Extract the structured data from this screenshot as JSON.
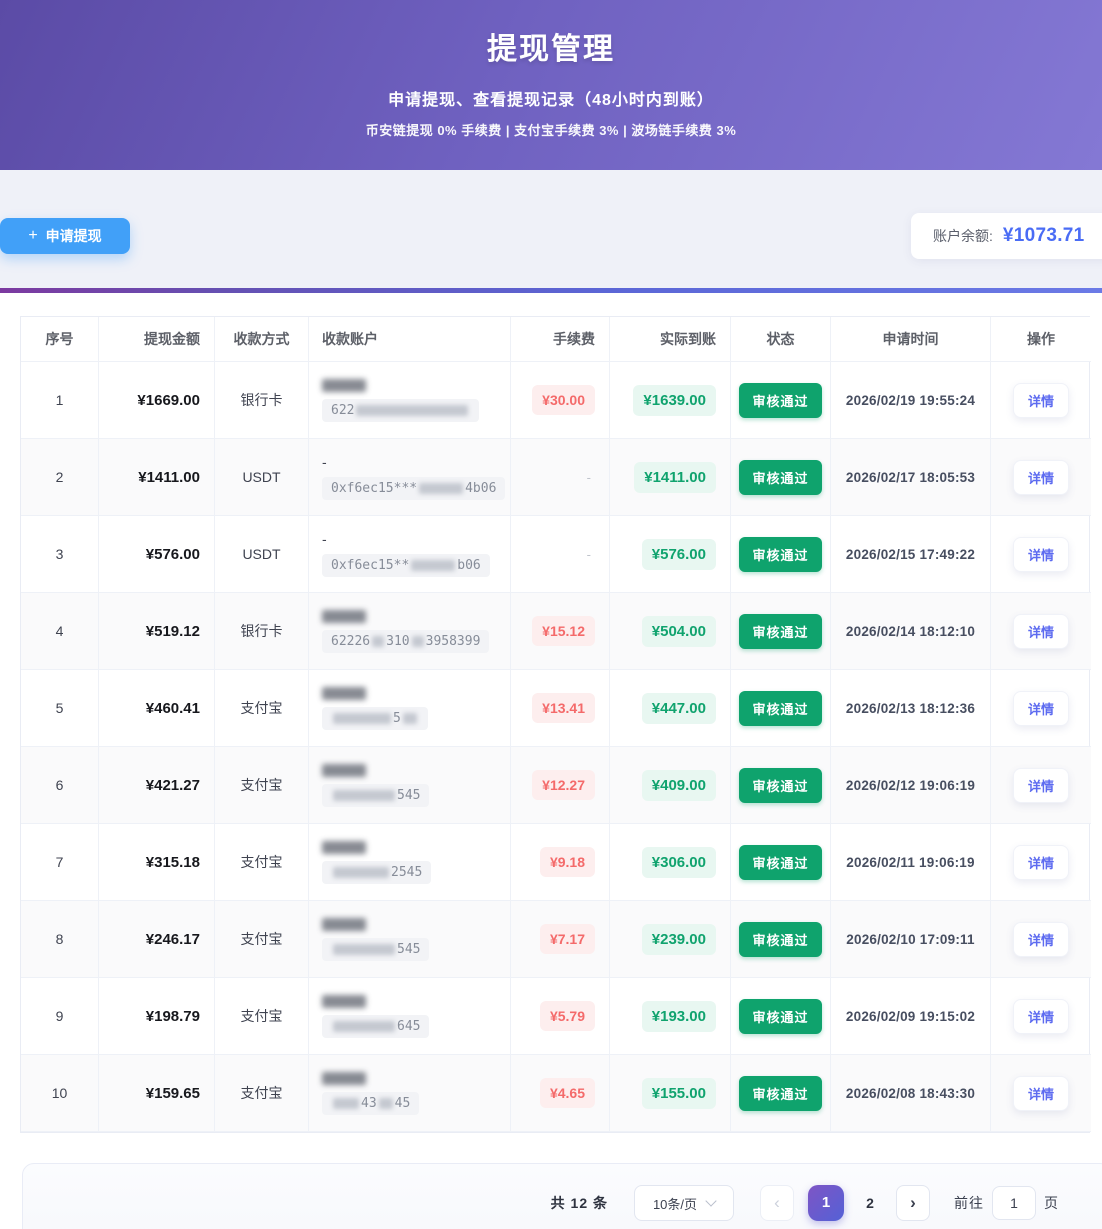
{
  "hero": {
    "title": "提现管理",
    "subtitle": "申请提现、查看提现记录（48小时内到账）",
    "fee_note": "币安链提现 0% 手续费 | 支付宝手续费 3% | 波场链手续费 3%"
  },
  "toolbar": {
    "plus_icon": "+",
    "apply_button": "申请提现",
    "balance_label": "账户余额:",
    "balance_value": "¥1073.71"
  },
  "colors": {
    "hero_gradient_start": "#5b4ba6",
    "hero_gradient_end": "#8478d4",
    "apply_button_blue": "#41a0f8",
    "balance_blue": "#4a6cf5",
    "fee_red": "#f46a6a",
    "fee_bg": "#fdeeee",
    "actual_green": "#10a36e",
    "actual_bg": "#e8f7f1",
    "status_green": "#0fa36d",
    "detail_blue": "#5d6bf0",
    "active_page_gradient": [
      "#7e55c5",
      "#5461d6"
    ]
  },
  "table": {
    "columns": [
      "序号",
      "提现金额",
      "收款方式",
      "收款账户",
      "手续费",
      "实际到账",
      "状态",
      "申请时间",
      "操作"
    ],
    "rows": [
      {
        "no": "1",
        "amount": "¥1669.00",
        "method": "银行卡",
        "account": {
          "line1": "masked",
          "line2": [
            {
              "text": "622"
            },
            {
              "mask": 112
            }
          ]
        },
        "fee": "¥30.00",
        "actual": "¥1639.00",
        "status": "审核通过",
        "time": "2026/02/19 19:55:24",
        "action": "详情"
      },
      {
        "no": "2",
        "amount": "¥1411.00",
        "method": "USDT",
        "account": {
          "line1": "-",
          "line2": [
            {
              "text": "0xf6ec15***"
            },
            {
              "mask": 44
            },
            {
              "text": "4b06"
            }
          ]
        },
        "fee": "-",
        "actual": "¥1411.00",
        "status": "审核通过",
        "time": "2026/02/17 18:05:53",
        "action": "详情"
      },
      {
        "no": "3",
        "amount": "¥576.00",
        "method": "USDT",
        "account": {
          "line1": "-",
          "line2": [
            {
              "text": "0xf6ec15**"
            },
            {
              "mask": 44
            },
            {
              "text": "b06"
            }
          ]
        },
        "fee": "-",
        "actual": "¥576.00",
        "status": "审核通过",
        "time": "2026/02/15 17:49:22",
        "action": "详情"
      },
      {
        "no": "4",
        "amount": "¥519.12",
        "method": "银行卡",
        "account": {
          "line1": "masked",
          "line2": [
            {
              "text": "62226"
            },
            {
              "mask": 12
            },
            {
              "text": "310"
            },
            {
              "mask": 12
            },
            {
              "text": "3958399"
            }
          ]
        },
        "fee": "¥15.12",
        "actual": "¥504.00",
        "status": "审核通过",
        "time": "2026/02/14 18:12:10",
        "action": "详情"
      },
      {
        "no": "5",
        "amount": "¥460.41",
        "method": "支付宝",
        "account": {
          "line1": "masked",
          "line2": [
            {
              "mask": 58
            },
            {
              "text": "5"
            },
            {
              "mask": 14
            }
          ]
        },
        "fee": "¥13.41",
        "actual": "¥447.00",
        "status": "审核通过",
        "time": "2026/02/13 18:12:36",
        "action": "详情"
      },
      {
        "no": "6",
        "amount": "¥421.27",
        "method": "支付宝",
        "account": {
          "line1": "masked",
          "line2": [
            {
              "mask": 62
            },
            {
              "text": "545"
            }
          ]
        },
        "fee": "¥12.27",
        "actual": "¥409.00",
        "status": "审核通过",
        "time": "2026/02/12 19:06:19",
        "action": "详情"
      },
      {
        "no": "7",
        "amount": "¥315.18",
        "method": "支付宝",
        "account": {
          "line1": "masked",
          "line2": [
            {
              "mask": 56
            },
            {
              "text": "2545"
            }
          ]
        },
        "fee": "¥9.18",
        "actual": "¥306.00",
        "status": "审核通过",
        "time": "2026/02/11 19:06:19",
        "action": "详情"
      },
      {
        "no": "8",
        "amount": "¥246.17",
        "method": "支付宝",
        "account": {
          "line1": "masked",
          "line2": [
            {
              "mask": 62
            },
            {
              "text": "545"
            }
          ]
        },
        "fee": "¥7.17",
        "actual": "¥239.00",
        "status": "审核通过",
        "time": "2026/02/10 17:09:11",
        "action": "详情"
      },
      {
        "no": "9",
        "amount": "¥198.79",
        "method": "支付宝",
        "account": {
          "line1": "masked",
          "line2": [
            {
              "mask": 62
            },
            {
              "text": "645"
            }
          ]
        },
        "fee": "¥5.79",
        "actual": "¥193.00",
        "status": "审核通过",
        "time": "2026/02/09 19:15:02",
        "action": "详情"
      },
      {
        "no": "10",
        "amount": "¥159.65",
        "method": "支付宝",
        "account": {
          "line1": "masked",
          "line2": [
            {
              "mask": 26
            },
            {
              "text": "43"
            },
            {
              "mask": 14
            },
            {
              "text": "45"
            }
          ]
        },
        "fee": "¥4.65",
        "actual": "¥155.00",
        "status": "审核通过",
        "time": "2026/02/08 18:43:30",
        "action": "详情"
      }
    ]
  },
  "pagination": {
    "total_text": "共 12 条",
    "page_size": "10条/页",
    "prev_icon": "‹",
    "next_icon": "›",
    "pages": [
      "1",
      "2"
    ],
    "active_page": "1",
    "goto_label": "前往",
    "goto_value": "1",
    "page_unit": "页"
  }
}
